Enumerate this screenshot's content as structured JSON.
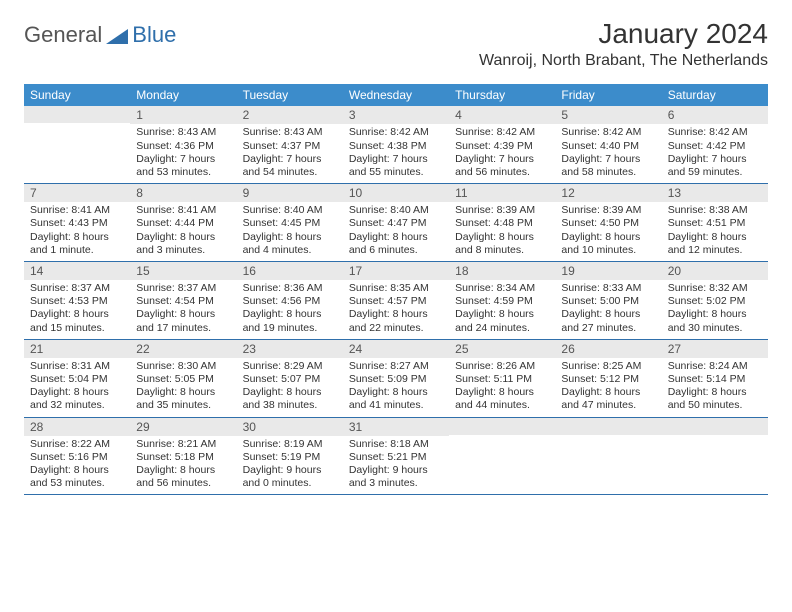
{
  "brand": {
    "general": "General",
    "blue": "Blue"
  },
  "header": {
    "month_title": "January 2024",
    "location": "Wanroij, North Brabant, The Netherlands"
  },
  "colors": {
    "header_bg": "#3c8ccb",
    "header_text": "#ffffff",
    "daynum_bg": "#e9e9e9",
    "rule": "#2f6fab",
    "text": "#333333",
    "logo_blue": "#2f6fab",
    "logo_grey": "#555555"
  },
  "calendar": {
    "day_labels": [
      "Sunday",
      "Monday",
      "Tuesday",
      "Wednesday",
      "Thursday",
      "Friday",
      "Saturday"
    ],
    "weeks": [
      [
        {
          "num": "",
          "sunrise": "",
          "sunset": "",
          "daylight": ""
        },
        {
          "num": "1",
          "sunrise": "Sunrise: 8:43 AM",
          "sunset": "Sunset: 4:36 PM",
          "daylight": "Daylight: 7 hours and 53 minutes."
        },
        {
          "num": "2",
          "sunrise": "Sunrise: 8:43 AM",
          "sunset": "Sunset: 4:37 PM",
          "daylight": "Daylight: 7 hours and 54 minutes."
        },
        {
          "num": "3",
          "sunrise": "Sunrise: 8:42 AM",
          "sunset": "Sunset: 4:38 PM",
          "daylight": "Daylight: 7 hours and 55 minutes."
        },
        {
          "num": "4",
          "sunrise": "Sunrise: 8:42 AM",
          "sunset": "Sunset: 4:39 PM",
          "daylight": "Daylight: 7 hours and 56 minutes."
        },
        {
          "num": "5",
          "sunrise": "Sunrise: 8:42 AM",
          "sunset": "Sunset: 4:40 PM",
          "daylight": "Daylight: 7 hours and 58 minutes."
        },
        {
          "num": "6",
          "sunrise": "Sunrise: 8:42 AM",
          "sunset": "Sunset: 4:42 PM",
          "daylight": "Daylight: 7 hours and 59 minutes."
        }
      ],
      [
        {
          "num": "7",
          "sunrise": "Sunrise: 8:41 AM",
          "sunset": "Sunset: 4:43 PM",
          "daylight": "Daylight: 8 hours and 1 minute."
        },
        {
          "num": "8",
          "sunrise": "Sunrise: 8:41 AM",
          "sunset": "Sunset: 4:44 PM",
          "daylight": "Daylight: 8 hours and 3 minutes."
        },
        {
          "num": "9",
          "sunrise": "Sunrise: 8:40 AM",
          "sunset": "Sunset: 4:45 PM",
          "daylight": "Daylight: 8 hours and 4 minutes."
        },
        {
          "num": "10",
          "sunrise": "Sunrise: 8:40 AM",
          "sunset": "Sunset: 4:47 PM",
          "daylight": "Daylight: 8 hours and 6 minutes."
        },
        {
          "num": "11",
          "sunrise": "Sunrise: 8:39 AM",
          "sunset": "Sunset: 4:48 PM",
          "daylight": "Daylight: 8 hours and 8 minutes."
        },
        {
          "num": "12",
          "sunrise": "Sunrise: 8:39 AM",
          "sunset": "Sunset: 4:50 PM",
          "daylight": "Daylight: 8 hours and 10 minutes."
        },
        {
          "num": "13",
          "sunrise": "Sunrise: 8:38 AM",
          "sunset": "Sunset: 4:51 PM",
          "daylight": "Daylight: 8 hours and 12 minutes."
        }
      ],
      [
        {
          "num": "14",
          "sunrise": "Sunrise: 8:37 AM",
          "sunset": "Sunset: 4:53 PM",
          "daylight": "Daylight: 8 hours and 15 minutes."
        },
        {
          "num": "15",
          "sunrise": "Sunrise: 8:37 AM",
          "sunset": "Sunset: 4:54 PM",
          "daylight": "Daylight: 8 hours and 17 minutes."
        },
        {
          "num": "16",
          "sunrise": "Sunrise: 8:36 AM",
          "sunset": "Sunset: 4:56 PM",
          "daylight": "Daylight: 8 hours and 19 minutes."
        },
        {
          "num": "17",
          "sunrise": "Sunrise: 8:35 AM",
          "sunset": "Sunset: 4:57 PM",
          "daylight": "Daylight: 8 hours and 22 minutes."
        },
        {
          "num": "18",
          "sunrise": "Sunrise: 8:34 AM",
          "sunset": "Sunset: 4:59 PM",
          "daylight": "Daylight: 8 hours and 24 minutes."
        },
        {
          "num": "19",
          "sunrise": "Sunrise: 8:33 AM",
          "sunset": "Sunset: 5:00 PM",
          "daylight": "Daylight: 8 hours and 27 minutes."
        },
        {
          "num": "20",
          "sunrise": "Sunrise: 8:32 AM",
          "sunset": "Sunset: 5:02 PM",
          "daylight": "Daylight: 8 hours and 30 minutes."
        }
      ],
      [
        {
          "num": "21",
          "sunrise": "Sunrise: 8:31 AM",
          "sunset": "Sunset: 5:04 PM",
          "daylight": "Daylight: 8 hours and 32 minutes."
        },
        {
          "num": "22",
          "sunrise": "Sunrise: 8:30 AM",
          "sunset": "Sunset: 5:05 PM",
          "daylight": "Daylight: 8 hours and 35 minutes."
        },
        {
          "num": "23",
          "sunrise": "Sunrise: 8:29 AM",
          "sunset": "Sunset: 5:07 PM",
          "daylight": "Daylight: 8 hours and 38 minutes."
        },
        {
          "num": "24",
          "sunrise": "Sunrise: 8:27 AM",
          "sunset": "Sunset: 5:09 PM",
          "daylight": "Daylight: 8 hours and 41 minutes."
        },
        {
          "num": "25",
          "sunrise": "Sunrise: 8:26 AM",
          "sunset": "Sunset: 5:11 PM",
          "daylight": "Daylight: 8 hours and 44 minutes."
        },
        {
          "num": "26",
          "sunrise": "Sunrise: 8:25 AM",
          "sunset": "Sunset: 5:12 PM",
          "daylight": "Daylight: 8 hours and 47 minutes."
        },
        {
          "num": "27",
          "sunrise": "Sunrise: 8:24 AM",
          "sunset": "Sunset: 5:14 PM",
          "daylight": "Daylight: 8 hours and 50 minutes."
        }
      ],
      [
        {
          "num": "28",
          "sunrise": "Sunrise: 8:22 AM",
          "sunset": "Sunset: 5:16 PM",
          "daylight": "Daylight: 8 hours and 53 minutes."
        },
        {
          "num": "29",
          "sunrise": "Sunrise: 8:21 AM",
          "sunset": "Sunset: 5:18 PM",
          "daylight": "Daylight: 8 hours and 56 minutes."
        },
        {
          "num": "30",
          "sunrise": "Sunrise: 8:19 AM",
          "sunset": "Sunset: 5:19 PM",
          "daylight": "Daylight: 9 hours and 0 minutes."
        },
        {
          "num": "31",
          "sunrise": "Sunrise: 8:18 AM",
          "sunset": "Sunset: 5:21 PM",
          "daylight": "Daylight: 9 hours and 3 minutes."
        },
        {
          "num": "",
          "sunrise": "",
          "sunset": "",
          "daylight": ""
        },
        {
          "num": "",
          "sunrise": "",
          "sunset": "",
          "daylight": ""
        },
        {
          "num": "",
          "sunrise": "",
          "sunset": "",
          "daylight": ""
        }
      ]
    ]
  }
}
